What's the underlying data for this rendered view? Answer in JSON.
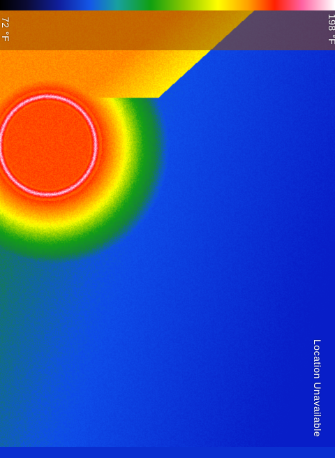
{
  "overlay": {
    "min_temp": "72 °F",
    "max_temp": "198 °F",
    "location_status": "Location Unavailable"
  },
  "palette": {
    "colors": [
      "#000000",
      "#0b0b35",
      "#1020a0",
      "#1458e8",
      "#18a0a0",
      "#10a010",
      "#8ac800",
      "#ffff00",
      "#ffa000",
      "#ff2000",
      "#ff60a0",
      "#ffffff"
    ]
  }
}
